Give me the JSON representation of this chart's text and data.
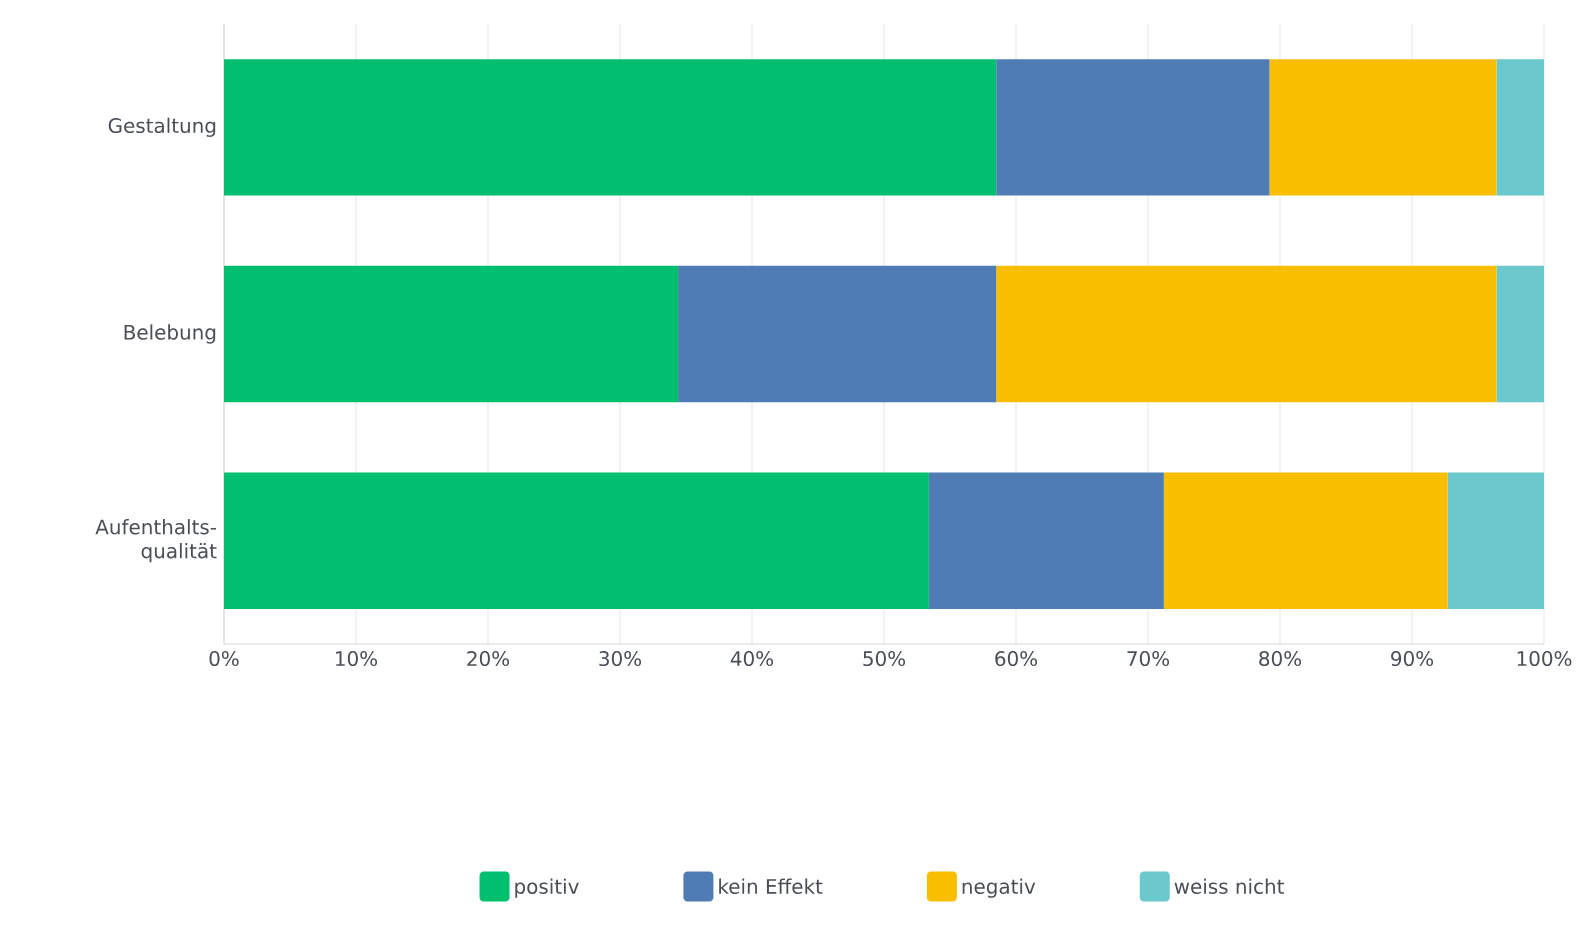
{
  "chart_data": {
    "type": "bar",
    "orientation": "horizontal",
    "stacked": true,
    "categories": [
      "Gestaltung",
      "Belebung",
      "Aufenthalts-qualität"
    ],
    "series": [
      {
        "name": "positiv",
        "color": "#00bf6f",
        "values": [
          58.5,
          34.4,
          53.4
        ]
      },
      {
        "name": "kein Effekt",
        "color": "#507cb6",
        "values": [
          20.7,
          24.1,
          17.8
        ]
      },
      {
        "name": "negativ",
        "color": "#f9be00",
        "values": [
          17.2,
          37.9,
          21.5
        ]
      },
      {
        "name": "weiss nicht",
        "color": "#6bc8cd",
        "values": [
          3.6,
          3.6,
          7.3
        ]
      }
    ],
    "xlim": [
      0,
      100
    ],
    "xticks": [
      {
        "value": 0,
        "label": "0%"
      },
      {
        "value": 10,
        "label": "10%"
      },
      {
        "value": 20,
        "label": "20%"
      },
      {
        "value": 30,
        "label": "30%"
      },
      {
        "value": 40,
        "label": "40%"
      },
      {
        "value": 50,
        "label": "50%"
      },
      {
        "value": 60,
        "label": "60%"
      },
      {
        "value": 70,
        "label": "70%"
      },
      {
        "value": 80,
        "label": "80%"
      },
      {
        "value": 90,
        "label": "90%"
      },
      {
        "value": 100,
        "label": "100%"
      }
    ],
    "grid": "x",
    "legend": "bottom"
  }
}
